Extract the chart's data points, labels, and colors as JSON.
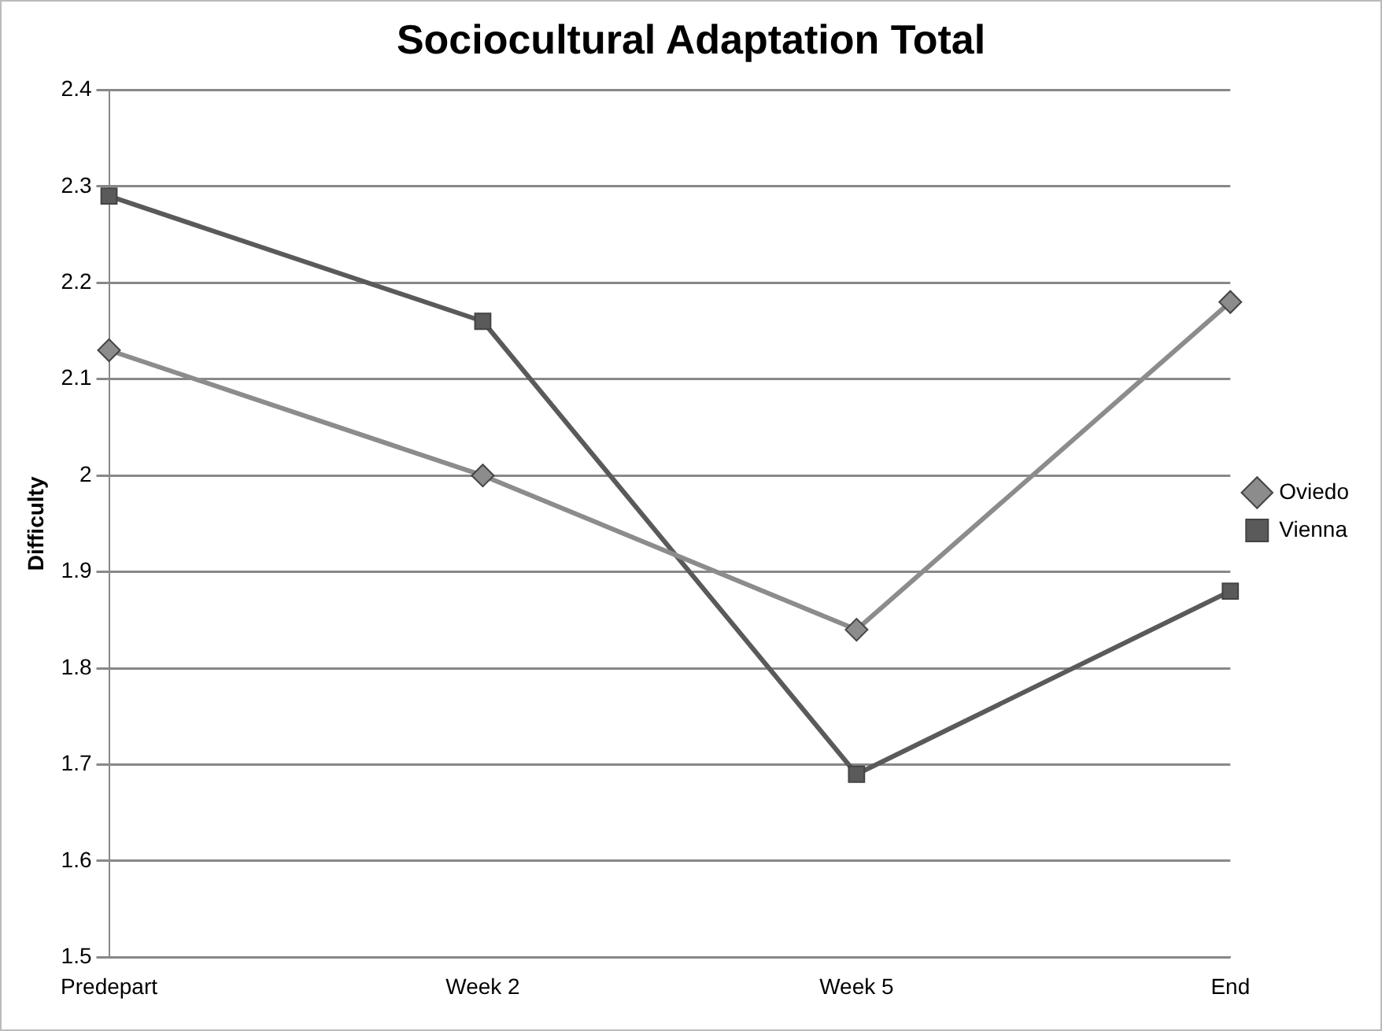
{
  "chart_data": {
    "type": "line",
    "title": "Sociocultural Adaptation Total",
    "ylabel": "Difficulty",
    "categories": [
      "Predepart",
      "Week 2",
      "Week 5",
      "End"
    ],
    "series": [
      {
        "name": "Oviedo",
        "color": "#8c8c8c",
        "marker": "diamond",
        "values": [
          2.13,
          2.0,
          1.84,
          2.18
        ]
      },
      {
        "name": "Vienna",
        "color": "#5a5a5a",
        "marker": "square",
        "values": [
          2.29,
          2.16,
          1.69,
          1.88
        ]
      }
    ],
    "ylim": [
      1.5,
      2.4
    ],
    "yticks": [
      1.5,
      1.6,
      1.7,
      1.8,
      1.9,
      2,
      2.1,
      2.2,
      2.3,
      2.4
    ],
    "grid": "y",
    "legend": "right"
  }
}
